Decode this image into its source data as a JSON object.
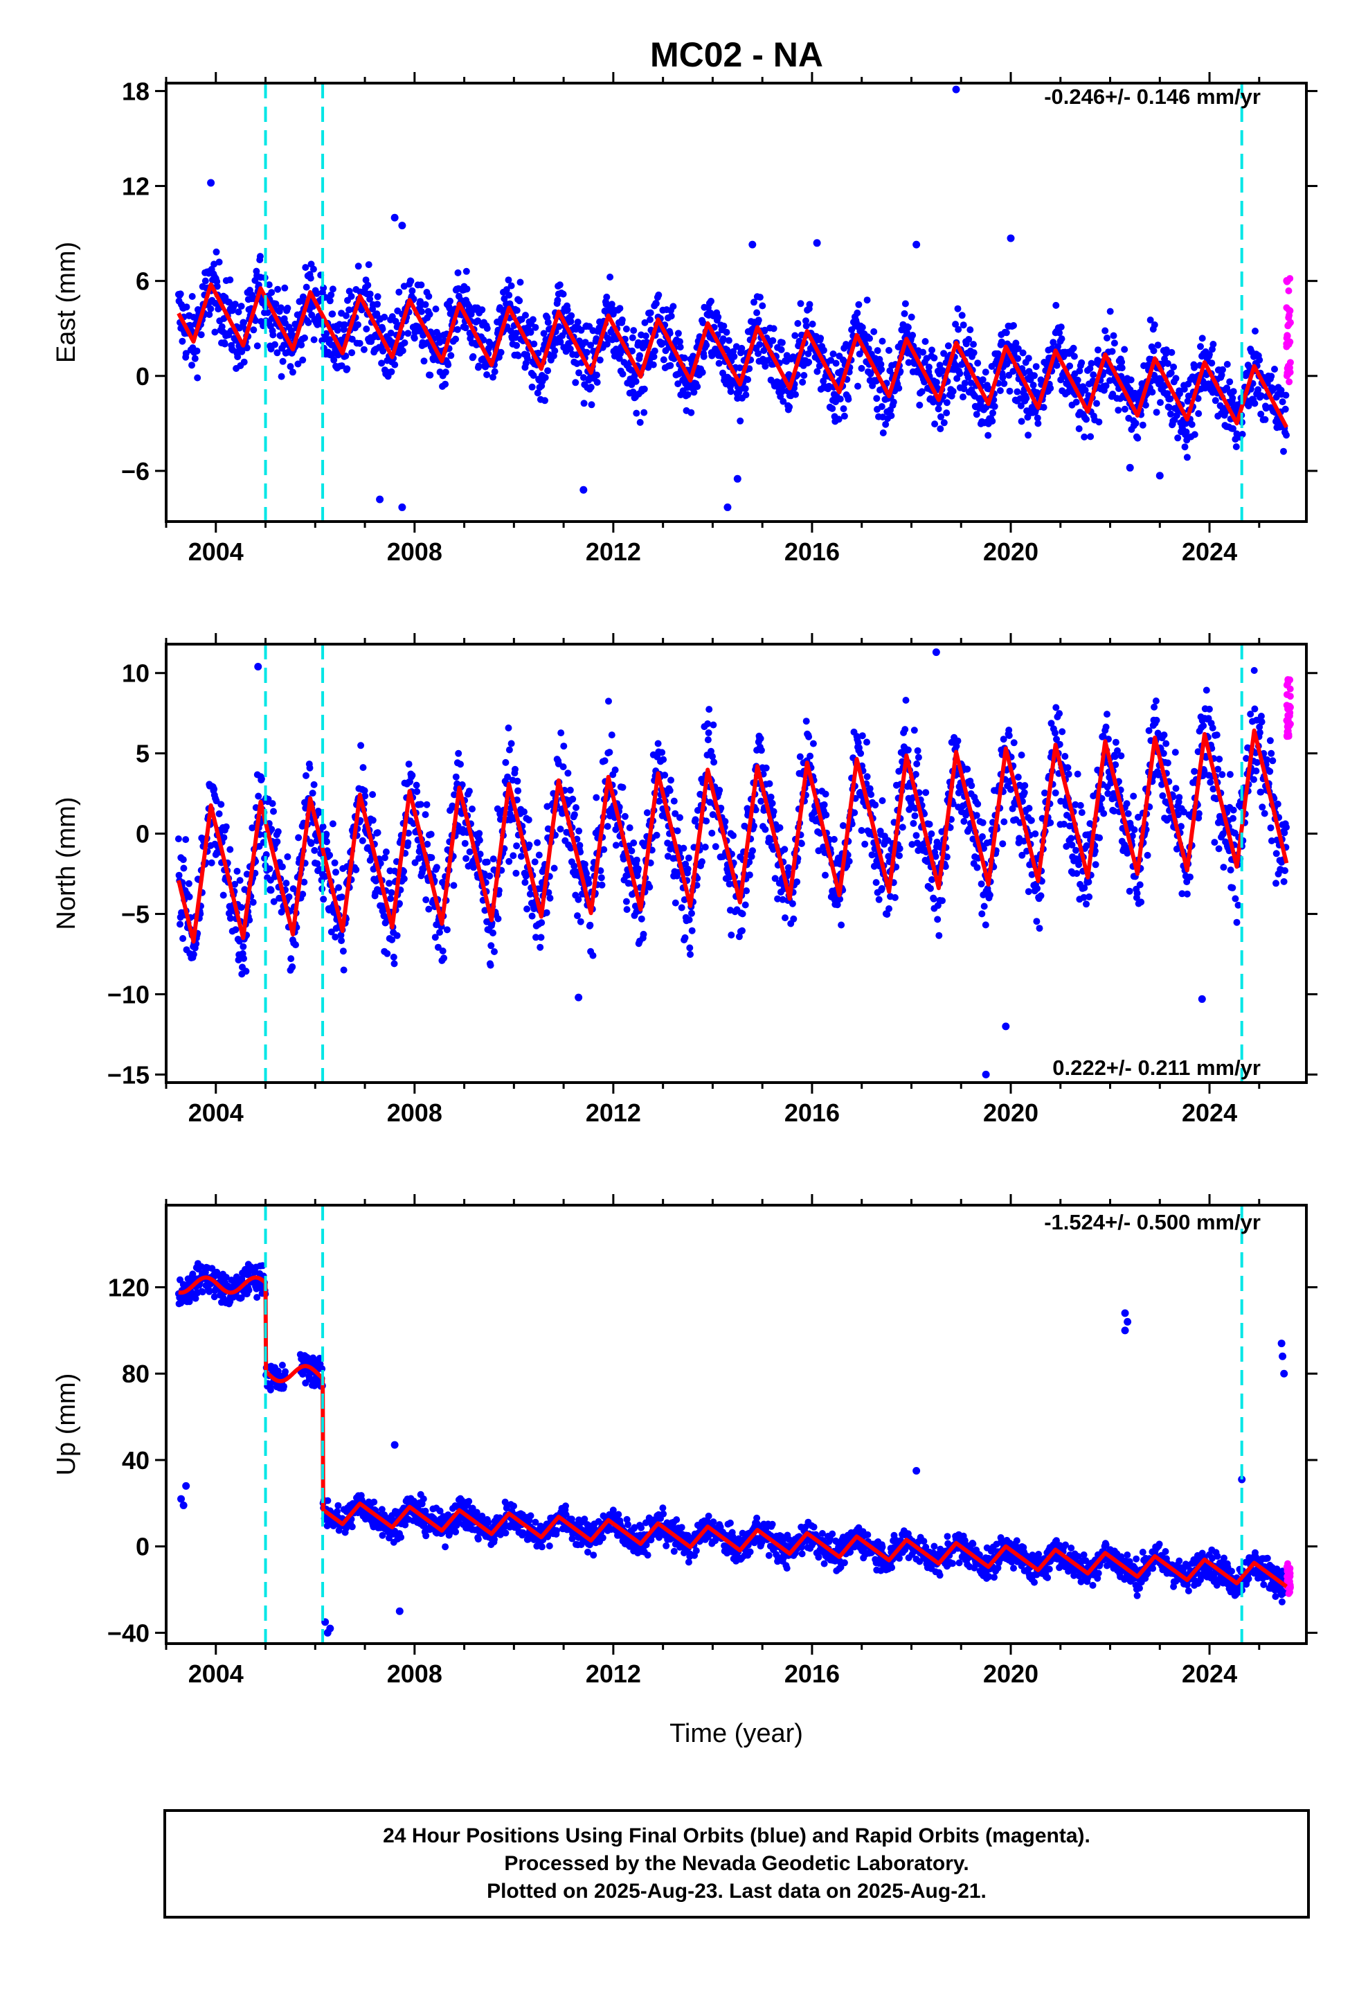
{
  "title": "MC02 - NA",
  "colors": {
    "final_points": "#0000ff",
    "rapid_points": "#ff00ff",
    "model": "#ff0000",
    "events": "#00e6e6",
    "frame": "#000000"
  },
  "x_tick_labels": [
    "2004",
    "2008",
    "2012",
    "2016",
    "2020",
    "2024"
  ],
  "footer": {
    "line1": "24 Hour Positions Using Final Orbits (blue) and Rapid Orbits (magenta).",
    "line2": "Processed by the Nevada Geodetic Laboratory.",
    "line3": "Plotted on 2025-Aug-23. Last data on 2025-Aug-21."
  },
  "chart_data": [
    {
      "type": "scatter",
      "component": "east",
      "ylabel": "East (mm)",
      "rate_label": "-0.246+/- 0.146 mm/yr",
      "xlim": [
        2003.0,
        2025.95
      ],
      "ylim": [
        -9.2,
        18.5
      ],
      "x_ticks": [
        2004,
        2008,
        2012,
        2016,
        2020,
        2024
      ],
      "y_ticks": [
        -6,
        0,
        6,
        12,
        18
      ],
      "y_tick_labels": [
        "−6",
        "0",
        "6",
        "12",
        "18"
      ],
      "events": [
        2005.0,
        2006.15,
        2024.65
      ],
      "data_span": [
        2003.25,
        2025.55
      ],
      "model": {
        "offset": 1.45,
        "trend": -0.246,
        "amplitude": 1.85,
        "phase_year": 2003.55,
        "steps": []
      },
      "scatter_sd": 1.7,
      "outliers": [
        [
          2003.9,
          12.2
        ],
        [
          2007.6,
          10.0
        ],
        [
          2007.75,
          9.5
        ],
        [
          2014.8,
          8.3
        ],
        [
          2016.1,
          8.4
        ],
        [
          2018.1,
          8.3
        ],
        [
          2018.9,
          18.1
        ],
        [
          2020.0,
          8.7
        ],
        [
          2007.75,
          -8.3
        ],
        [
          2007.3,
          -7.8
        ],
        [
          2011.4,
          -7.2
        ],
        [
          2014.3,
          -8.3
        ],
        [
          2014.5,
          -6.5
        ],
        [
          2022.4,
          -5.8
        ],
        [
          2023.0,
          -6.3
        ]
      ],
      "rapid": {
        "x_from": 2025.55,
        "x_to": 2025.63,
        "y_from": -0.5,
        "y_to": 6.6
      }
    },
    {
      "type": "scatter",
      "component": "north",
      "ylabel": "North (mm)",
      "rate_label": "0.222+/- 0.211 mm/yr",
      "xlim": [
        2003.0,
        2025.95
      ],
      "ylim": [
        -15.5,
        11.8
      ],
      "x_ticks": [
        2004,
        2008,
        2012,
        2016,
        2020,
        2024
      ],
      "y_ticks": [
        -15,
        -10,
        -5,
        0,
        5,
        10
      ],
      "y_tick_labels": [
        "−15",
        "−10",
        "−5",
        "0",
        "5",
        "10"
      ],
      "events": [
        2005.0,
        2006.15,
        2024.65
      ],
      "data_span": [
        2003.25,
        2025.55
      ],
      "model": {
        "offset": -0.2,
        "trend": 0.222,
        "amplitude": 4.2,
        "phase_year": 2003.55,
        "steps": []
      },
      "scatter_sd": 2.3,
      "outliers": [
        [
          2004.85,
          10.4
        ],
        [
          2011.3,
          -10.2
        ],
        [
          2018.5,
          11.3
        ],
        [
          2019.5,
          -15.0
        ],
        [
          2019.9,
          -12.0
        ],
        [
          2023.85,
          -10.3
        ],
        [
          2005.1,
          -3.5
        ]
      ],
      "rapid": {
        "x_from": 2025.55,
        "x_to": 2025.63,
        "y_from": 6.0,
        "y_to": 9.8
      }
    },
    {
      "type": "scatter",
      "component": "up",
      "ylabel": "Up (mm)",
      "rate_label": "-1.524+/- 0.500 mm/yr",
      "xlim": [
        2003.0,
        2025.95
      ],
      "ylim": [
        -45,
        158
      ],
      "x_ticks": [
        2004,
        2008,
        2012,
        2016,
        2020,
        2024
      ],
      "y_ticks": [
        -40,
        0,
        40,
        80,
        120
      ],
      "y_tick_labels": [
        "−40",
        "0",
        "40",
        "80",
        "120"
      ],
      "xlabel": "Time (year)",
      "events": [
        2005.0,
        2006.15,
        2024.65
      ],
      "data_span": [
        2003.25,
        2025.55
      ],
      "model": {
        "offset": 4.0,
        "trend": -1.524,
        "amplitude": 5.0,
        "phase_year": 2003.55,
        "steps": [
          [
            2003.25,
            2005.0,
            121.0
          ],
          [
            2005.0,
            2006.15,
            80.0
          ]
        ]
      },
      "scatter_sd": 5.0,
      "outliers": [
        [
          2003.3,
          22
        ],
        [
          2003.4,
          28
        ],
        [
          2003.35,
          19
        ],
        [
          2006.2,
          -35
        ],
        [
          2006.25,
          -40
        ],
        [
          2006.3,
          -38
        ],
        [
          2007.6,
          47
        ],
        [
          2007.7,
          -30
        ],
        [
          2018.1,
          35
        ],
        [
          2022.3,
          108
        ],
        [
          2022.3,
          100
        ],
        [
          2022.35,
          104
        ],
        [
          2024.65,
          31
        ],
        [
          2025.45,
          94
        ],
        [
          2025.47,
          88
        ],
        [
          2025.5,
          80
        ]
      ],
      "rapid": {
        "x_from": 2025.55,
        "x_to": 2025.63,
        "y_from": -22,
        "y_to": -8
      }
    }
  ]
}
